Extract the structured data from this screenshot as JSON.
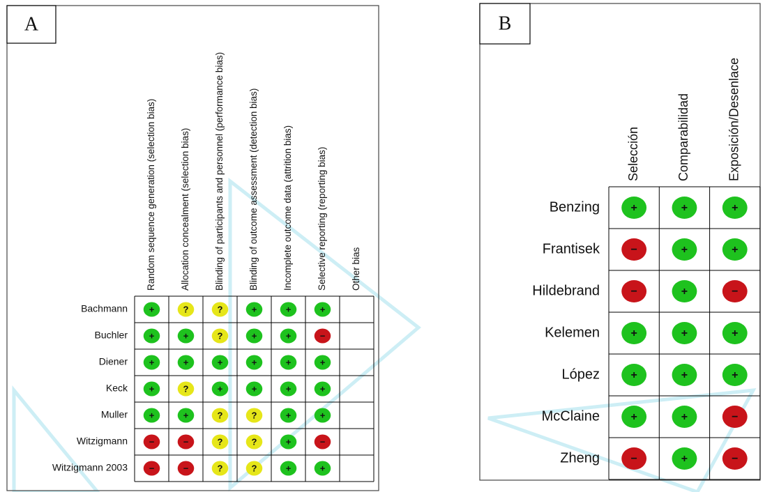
{
  "symbol_colors": {
    "+": "#1ec21e",
    "?": "#e6e619",
    "−": "#c8141a"
  },
  "panels": [
    {
      "label": "A",
      "columns": [
        "Random sequence generation (selection bias)",
        "Allocation concealment (selection bias)",
        "Blinding of participants and personnel (performance bias)",
        "Blinding of outcome assessment (detection bias)",
        "Incomplete outcome data (attrition bias)",
        "Selective reporting (reporting bias)",
        "Other bias"
      ],
      "rows": [
        {
          "name": "Bachmann",
          "cells": [
            "+",
            "?",
            "?",
            "+",
            "+",
            "+",
            null
          ]
        },
        {
          "name": "Buchler",
          "cells": [
            "+",
            "+",
            "?",
            "+",
            "+",
            "−",
            null
          ]
        },
        {
          "name": "Diener",
          "cells": [
            "+",
            "+",
            "+",
            "+",
            "+",
            "+",
            null
          ]
        },
        {
          "name": "Keck",
          "cells": [
            "+",
            "?",
            "+",
            "+",
            "+",
            "+",
            null
          ]
        },
        {
          "name": "Muller",
          "cells": [
            "+",
            "+",
            "?",
            "?",
            "+",
            "+",
            null
          ]
        },
        {
          "name": "Witzigmann",
          "cells": [
            "−",
            "−",
            "?",
            "?",
            "+",
            "−",
            null
          ]
        },
        {
          "name": "Witzigmann 2003",
          "cells": [
            "−",
            "−",
            "?",
            "?",
            "+",
            "+",
            null
          ]
        }
      ]
    },
    {
      "label": "B",
      "columns": [
        "Selección",
        "Comparabilidad",
        "Exposición/Desenlace"
      ],
      "rows": [
        {
          "name": "Benzing",
          "cells": [
            "+",
            "+",
            "+"
          ]
        },
        {
          "name": "Frantisek",
          "cells": [
            "−",
            "+",
            "+"
          ]
        },
        {
          "name": "Hildebrand",
          "cells": [
            "−",
            "+",
            "−"
          ]
        },
        {
          "name": "Kelemen",
          "cells": [
            "+",
            "+",
            "+"
          ]
        },
        {
          "name": "López",
          "cells": [
            "+",
            "+",
            "+"
          ]
        },
        {
          "name": "McClaine",
          "cells": [
            "+",
            "+",
            "−"
          ]
        },
        {
          "name": "Zheng",
          "cells": [
            "−",
            "+",
            "−"
          ]
        }
      ]
    }
  ]
}
